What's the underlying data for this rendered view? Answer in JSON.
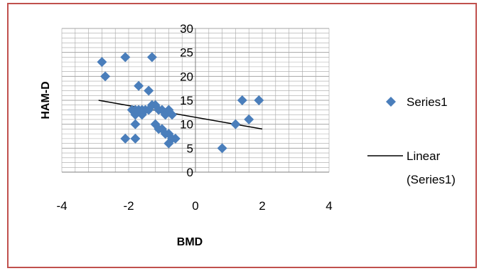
{
  "chart_data": {
    "type": "scatter",
    "xlabel": "BMD",
    "ylabel": "HAM-D",
    "xlim": [
      -4,
      4
    ],
    "ylim": [
      0,
      30
    ],
    "xticks": [
      -4,
      -2,
      0,
      2,
      4
    ],
    "yticks": [
      0,
      5,
      10,
      15,
      20,
      25,
      30
    ],
    "minor_grid_step_y": 1,
    "minor_grid_step_x": 0.4,
    "grid": true,
    "legend_position": "right",
    "colors": {
      "marker": "#4a7ebb",
      "trendline": "#000000",
      "grid": "#a6a6a6",
      "border": "#c0504d"
    },
    "series": [
      {
        "name": "Series1",
        "marker": "diamond",
        "points": [
          [
            -2.8,
            23
          ],
          [
            -2.7,
            20
          ],
          [
            -2.1,
            24
          ],
          [
            -1.3,
            24
          ],
          [
            -1.7,
            18
          ],
          [
            -1.4,
            17
          ],
          [
            -1.9,
            13
          ],
          [
            -1.8,
            13
          ],
          [
            -1.7,
            13
          ],
          [
            -1.6,
            12
          ],
          [
            -1.5,
            13
          ],
          [
            -1.4,
            13
          ],
          [
            -1.3,
            14
          ],
          [
            -1.2,
            14
          ],
          [
            -1.1,
            13
          ],
          [
            -1.0,
            13
          ],
          [
            -0.9,
            12
          ],
          [
            -0.8,
            13
          ],
          [
            -0.7,
            12
          ],
          [
            -1.8,
            12
          ],
          [
            -1.6,
            13
          ],
          [
            -1.2,
            10
          ],
          [
            -1.1,
            9
          ],
          [
            -1.0,
            9
          ],
          [
            -0.9,
            8
          ],
          [
            -0.8,
            8
          ],
          [
            -0.7,
            7
          ],
          [
            -0.6,
            7
          ],
          [
            -0.8,
            6
          ],
          [
            -2.1,
            7
          ],
          [
            -1.8,
            7
          ],
          [
            -1.8,
            10
          ],
          [
            0.8,
            5
          ],
          [
            1.2,
            10
          ],
          [
            1.4,
            15
          ],
          [
            1.6,
            11
          ],
          [
            1.9,
            15
          ]
        ]
      }
    ],
    "trendline": {
      "name": "Linear (Series1)",
      "type": "linear",
      "from": [
        -2.9,
        15
      ],
      "to": [
        2.0,
        9
      ]
    },
    "legend": {
      "series_label": "Series1",
      "trend_label_line1": "Linear",
      "trend_label_line2": "(Series1)"
    }
  }
}
